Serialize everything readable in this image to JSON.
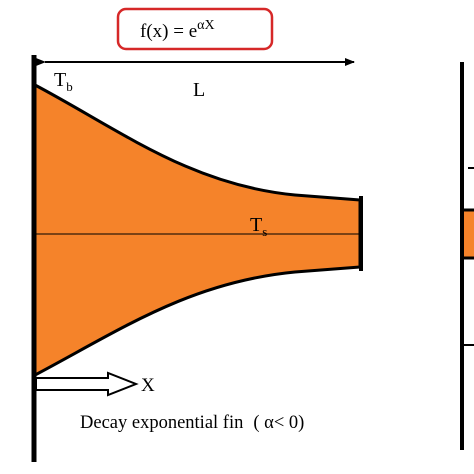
{
  "formula": {
    "prefix": "f(x) = e",
    "exponent": "αX",
    "box_color": "#d62828"
  },
  "labels": {
    "base_temperature": "T",
    "base_temperature_sub": "b",
    "length": "L",
    "surface_temperature": "T",
    "surface_temperature_sub": "s",
    "x_axis": "X",
    "caption_main": "Decay exponential fin",
    "caption_condition": "( α< 0)"
  },
  "colors": {
    "fin_fill": "#f5832a",
    "stroke": "#000000"
  }
}
